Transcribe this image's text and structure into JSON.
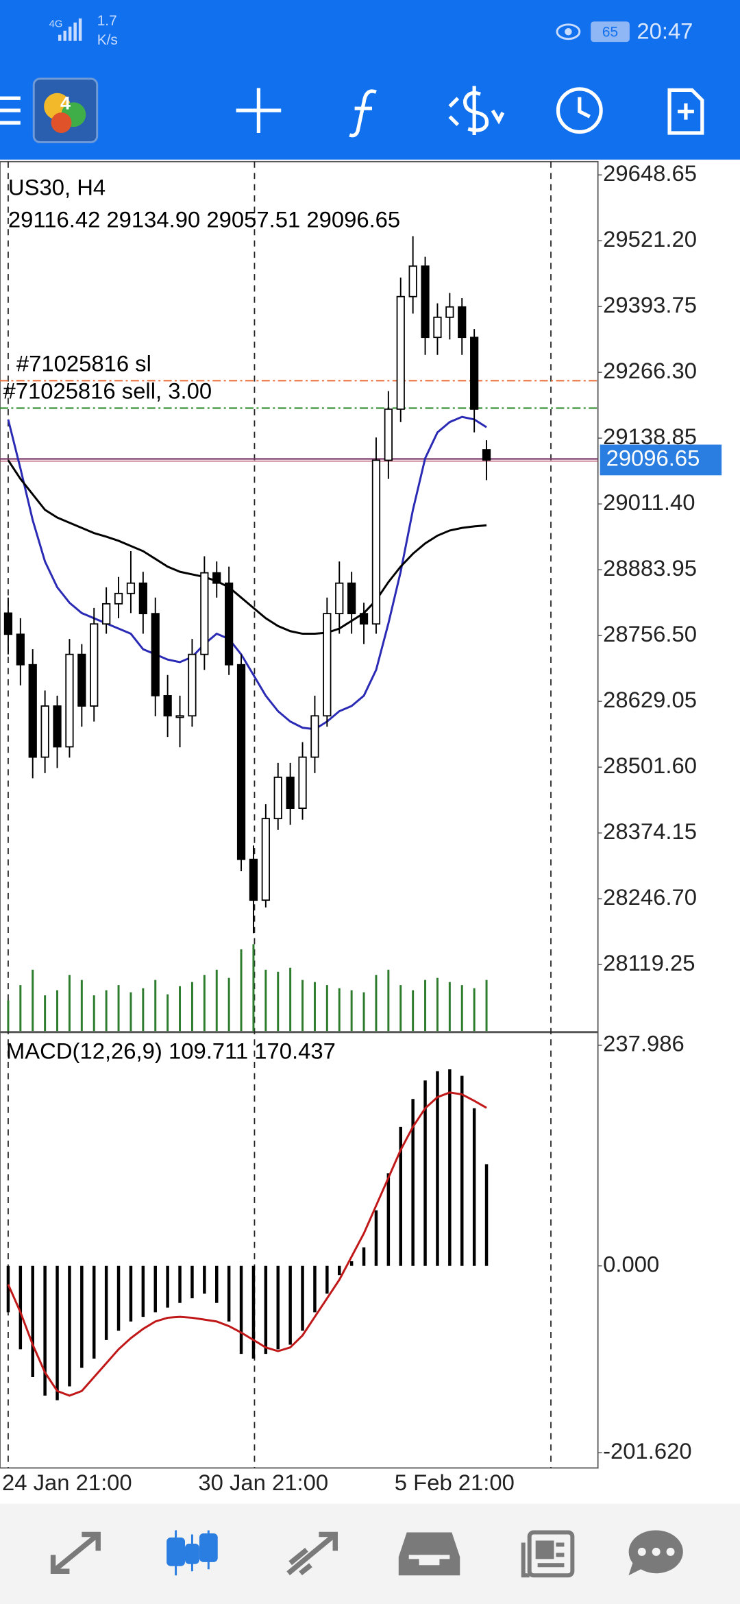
{
  "status_bar": {
    "network": "4G",
    "speed": "1.7",
    "speed_unit": "K/s",
    "battery": "65",
    "time": "20:47"
  },
  "chart_data": [
    {
      "type": "candlestick",
      "title": "US30, H4",
      "categories": [
        "24 Jan 21:00",
        null,
        null,
        null,
        null,
        null,
        null,
        null,
        null,
        null,
        null,
        null,
        null,
        null,
        null,
        null,
        "30 Jan 21:00",
        null,
        null,
        null,
        null,
        null,
        null,
        null,
        null,
        null,
        null,
        null,
        null,
        null,
        null,
        null,
        "5 Feb 21:00",
        null,
        null,
        null,
        null,
        null,
        null,
        null
      ],
      "open": [
        28800,
        28759,
        28700,
        28521,
        28620,
        28541,
        28720,
        28620,
        28779,
        28818,
        28838,
        28858,
        28799,
        28640,
        28601,
        28601,
        28720,
        28878,
        28858,
        28700,
        28323,
        28244,
        28402,
        28482,
        28422,
        28521,
        28601,
        28799,
        28858,
        28799,
        28779,
        29096,
        29195,
        29413,
        29472,
        29334,
        29373,
        29393,
        29334,
        29116.42
      ],
      "high": [
        28830,
        28790,
        28730,
        28650,
        28640,
        28750,
        28740,
        28810,
        28850,
        28870,
        28920,
        28880,
        28830,
        28680,
        28640,
        28750,
        28910,
        28900,
        28890,
        28720,
        28350,
        28430,
        28510,
        28510,
        28550,
        28640,
        28830,
        28900,
        28880,
        28820,
        29140,
        29230,
        29450,
        29530,
        29490,
        29400,
        29420,
        29410,
        29350,
        29134.9
      ],
      "low": [
        28720,
        28660,
        28480,
        28490,
        28500,
        28520,
        28580,
        28590,
        28760,
        28790,
        28800,
        28760,
        28600,
        28560,
        28540,
        28580,
        28690,
        28830,
        28680,
        28300,
        28180,
        28230,
        28380,
        28390,
        28400,
        28490,
        28580,
        28760,
        28760,
        28740,
        28760,
        29060,
        29170,
        29380,
        29300,
        29300,
        29330,
        29300,
        29150,
        29057.51
      ],
      "close": [
        28759,
        28700,
        28521,
        28620,
        28541,
        28720,
        28620,
        28779,
        28818,
        28838,
        28858,
        28799,
        28640,
        28601,
        28601,
        28720,
        28878,
        28858,
        28700,
        28323,
        28244,
        28402,
        28482,
        28422,
        28521,
        28601,
        28799,
        28858,
        28799,
        28779,
        29096,
        29195,
        29413,
        29472,
        29334,
        29373,
        29393,
        29334,
        29195,
        29096.65
      ],
      "high_label": "29134.90",
      "ylim": [
        27990.3,
        29674.4
      ],
      "yticks": [
        29648.65,
        {
          "value": 29521.2,
          "label": "29521.20"
        },
        29393.75,
        {
          "value": 29266.3,
          "label": "29266.30"
        },
        29138.85,
        {
          "value": 29011.4,
          "label": "29011.40"
        },
        28883.95,
        {
          "value": 28756.5,
          "label": "28756.50"
        },
        28629.05,
        {
          "value": 28501.6,
          "label": "28501.60"
        },
        28374.15,
        {
          "value": 28246.7,
          "label": "28246.70"
        },
        28119.25
      ],
      "grid": false,
      "up_color": "#ffffff",
      "down_color": "#000000",
      "moving_averages": [
        {
          "color": "#2a2ab4",
          "values": [
            29175,
            29080,
            28980,
            28900,
            28850,
            28820,
            28800,
            28790,
            28780,
            28770,
            28760,
            28730,
            28720,
            28710,
            28705,
            28715,
            28740,
            28760,
            28750,
            28720,
            28680,
            28640,
            28610,
            28590,
            28578,
            28575,
            28590,
            28610,
            28620,
            28640,
            28690,
            28780,
            28880,
            29000,
            29100,
            29150,
            29170,
            29180,
            29175,
            29160
          ]
        },
        {
          "color": "#000000",
          "values": [
            29096,
            29060,
            29030,
            29000,
            28985,
            28975,
            28965,
            28955,
            28948,
            28940,
            28930,
            28920,
            28905,
            28890,
            28880,
            28875,
            28870,
            28862,
            28850,
            28830,
            28810,
            28790,
            28775,
            28765,
            28760,
            28760,
            28762,
            28770,
            28785,
            28800,
            28825,
            28860,
            28890,
            28915,
            28935,
            28950,
            28960,
            28965,
            28968,
            28970
          ]
        }
      ],
      "volume": {
        "color": "#2e7d2e",
        "vlim": [
          0,
          100
        ],
        "values": [
          30,
          45,
          60,
          35,
          40,
          55,
          50,
          35,
          40,
          45,
          38,
          42,
          50,
          36,
          44,
          48,
          55,
          60,
          52,
          80,
          85,
          60,
          58,
          62,
          50,
          48,
          45,
          42,
          40,
          38,
          55,
          60,
          45,
          40,
          50,
          52,
          48,
          45,
          42,
          50
        ]
      },
      "levels": [
        {
          "label": "#71025816 sl",
          "value": 29250,
          "color": "#e8642c"
        },
        {
          "label": "#71025816 sell, 3.00",
          "value": 29197,
          "color": "#2a8a2a"
        }
      ],
      "price_line_color": "#7a3a6a",
      "price_tag_color": "#2a7de1"
    },
    {
      "type": "macd",
      "title": "MACD(12,26,9)",
      "histogram": [
        -50,
        -90,
        -120,
        -140,
        -145,
        -130,
        -110,
        -100,
        -80,
        -70,
        -60,
        -55,
        -50,
        -45,
        -40,
        -35,
        -30,
        -40,
        -60,
        -95,
        -100,
        -95,
        -90,
        -85,
        -70,
        -50,
        -30,
        -10,
        5,
        20,
        60,
        100,
        150,
        180,
        200,
        210,
        212,
        205,
        170,
        109.711
      ],
      "signal": [
        -20,
        -50,
        -85,
        -115,
        -135,
        -140,
        -135,
        -120,
        -105,
        -90,
        -78,
        -68,
        -60,
        -56,
        -55,
        -56,
        -58,
        -60,
        -65,
        -72,
        -80,
        -88,
        -92,
        -88,
        -75,
        -55,
        -35,
        -15,
        10,
        35,
        65,
        95,
        125,
        150,
        170,
        182,
        187,
        185,
        178,
        170.437
      ],
      "histogram_color": "#000000",
      "signal_color": "#c01818",
      "ylim": [
        -218,
        251
      ],
      "yticks": [
        237.986,
        {
          "value": 0,
          "label": "0.000"
        },
        {
          "value": -201.62,
          "label": "-201.620"
        }
      ]
    }
  ]
}
